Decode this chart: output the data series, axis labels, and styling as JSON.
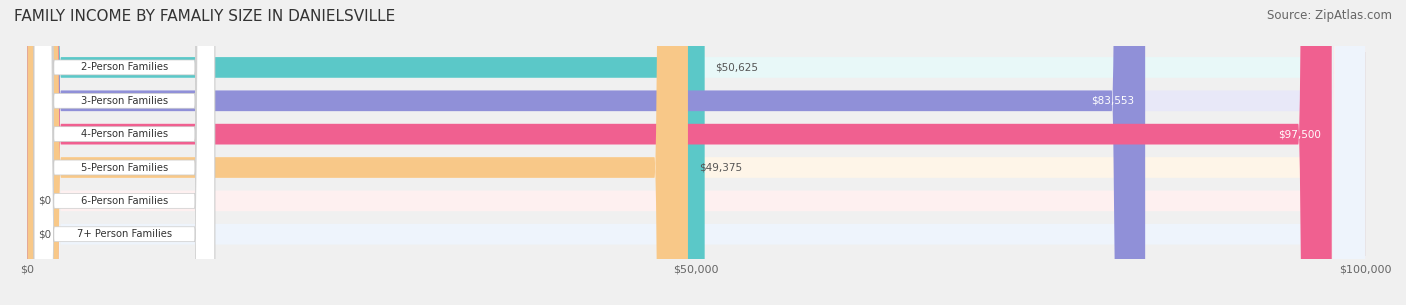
{
  "title": "FAMILY INCOME BY FAMALIY SIZE IN DANIELSVILLE",
  "source": "Source: ZipAtlas.com",
  "categories": [
    "2-Person Families",
    "3-Person Families",
    "4-Person Families",
    "5-Person Families",
    "6-Person Families",
    "7+ Person Families"
  ],
  "values": [
    50625,
    83553,
    97500,
    49375,
    0,
    0
  ],
  "labels": [
    "$50,625",
    "$83,553",
    "$97,500",
    "$49,375",
    "$0",
    "$0"
  ],
  "bar_colors": [
    "#5bc8c8",
    "#9090d8",
    "#f06090",
    "#f8c888",
    "#f09898",
    "#90b8e8"
  ],
  "bar_bg_colors": [
    "#e8f8f8",
    "#e8e8f8",
    "#fce8f0",
    "#fef5e8",
    "#fef0f0",
    "#eef4fc"
  ],
  "max_value": 100000,
  "label_inside": [
    false,
    true,
    true,
    false,
    false,
    false
  ],
  "background_color": "#f0f0f0",
  "title_fontsize": 11,
  "source_fontsize": 8.5,
  "tick_labels": [
    "$0",
    "$50,000",
    "$100,000"
  ],
  "tick_values": [
    0,
    50000,
    100000
  ]
}
